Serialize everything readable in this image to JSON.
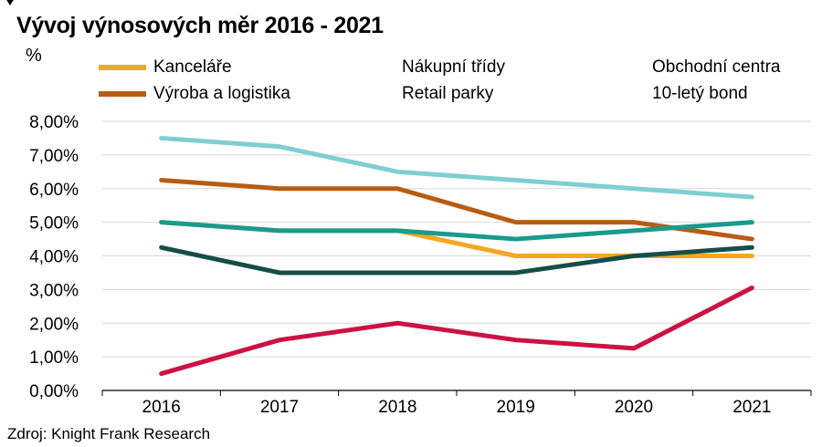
{
  "chart_data": {
    "type": "line",
    "title": "Vývoj výnosových měr 2016 - 2021",
    "ylabel": "%",
    "source": "Zdroj: Knight Frank Research",
    "categories": [
      "2016",
      "2017",
      "2018",
      "2019",
      "2020",
      "2021"
    ],
    "ylim": [
      0,
      8
    ],
    "yticks": [
      "0,00%",
      "1,00%",
      "2,00%",
      "3,00%",
      "4,00%",
      "5,00%",
      "6,00%",
      "7,00%",
      "8,00%"
    ],
    "grid": true,
    "legend_position": "top",
    "series": [
      {
        "name": "Kanceláře",
        "color": "#F5A623",
        "values": [
          5.0,
          4.75,
          4.75,
          4.0,
          4.0,
          4.0
        ]
      },
      {
        "name": "Výroba a logistika",
        "color": "#B85C14",
        "values": [
          6.25,
          6.0,
          6.0,
          5.0,
          5.0,
          4.5
        ]
      },
      {
        "name": "Nákupní třídy",
        "color": "#7FCFD2",
        "values": [
          7.5,
          7.25,
          6.5,
          6.25,
          6.0,
          5.75
        ]
      },
      {
        "name": "Retail parky",
        "color": "#1A9A8C",
        "values": [
          5.0,
          4.75,
          4.75,
          4.5,
          4.75,
          5.0
        ]
      },
      {
        "name": "Obchodní centra",
        "color": "#154E45",
        "values": [
          4.25,
          3.5,
          3.5,
          3.5,
          4.0,
          4.25
        ]
      },
      {
        "name": "10-letý bond",
        "color": "#CC1144",
        "values": [
          0.5,
          1.5,
          2.0,
          1.5,
          1.25,
          3.05
        ]
      }
    ]
  }
}
